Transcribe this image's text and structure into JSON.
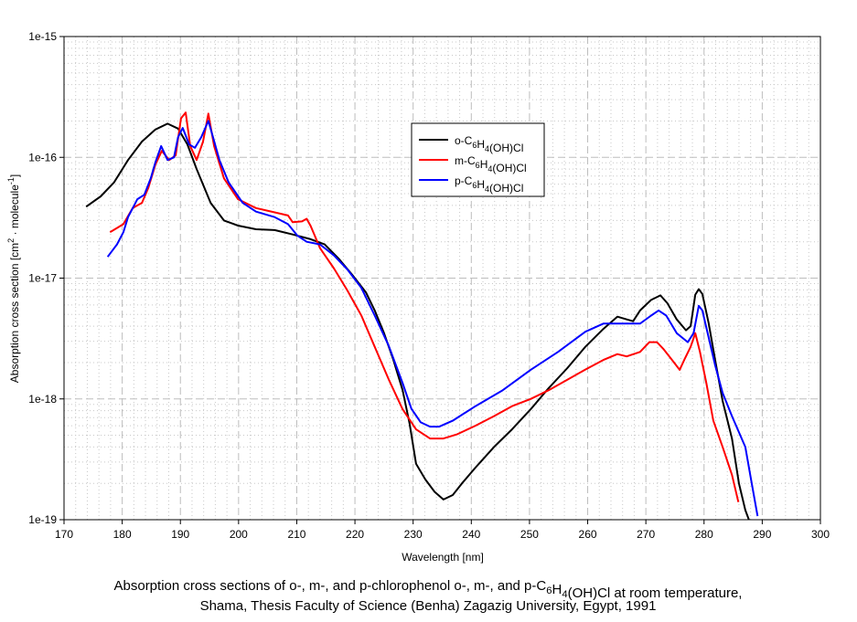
{
  "chart_data": {
    "type": "line",
    "title": "",
    "xlabel": "Wavelength [nm]",
    "ylabel": {
      "prefix": "Absorption cross section [cm",
      "sup1": "2",
      "middle": " · molecule",
      "sup2": "-1",
      "suffix": "]"
    },
    "xlim": [
      170,
      300
    ],
    "ylim": [
      1e-19,
      1e-15
    ],
    "yscale": "log",
    "xticks": [
      "170",
      "180",
      "190",
      "200",
      "210",
      "220",
      "230",
      "240",
      "250",
      "260",
      "270",
      "280",
      "290",
      "300"
    ],
    "yticks": [
      "1e-15",
      "1e-16",
      "1e-17",
      "1e-18",
      "1e-19"
    ],
    "grid": true,
    "legend_placement": "top-center",
    "caption": [
      "Absorption cross sections of o-, m-, and p-chlorophenol o-, m-, and p-C6H4(OH)Cl at room temperature,",
      "Shama, Thesis Faculty of Science (Benha) Zagazig University, Egypt, 1991"
    ],
    "series": [
      {
        "name": "o-C6H4(OH)Cl",
        "color": "#000000",
        "x": [
          173.8,
          176.3,
          178.6,
          181.0,
          183.4,
          185.7,
          187.8,
          189.6,
          191.2,
          192.8,
          195.2,
          197.5,
          199.9,
          203.0,
          206.2,
          209.3,
          212.4,
          214.8,
          217.2,
          219.5,
          221.9,
          223.4,
          225.0,
          226.6,
          228.2,
          229.4,
          230.5,
          232.1,
          233.7,
          235.2,
          236.8,
          238.4,
          240.7,
          243.9,
          247.0,
          250.2,
          253.3,
          256.5,
          259.6,
          262.7,
          265.1,
          266.7,
          267.8,
          269.0,
          270.9,
          272.5,
          273.7,
          275.3,
          276.9,
          277.7,
          278.5,
          279.1,
          279.7,
          280.8,
          281.9,
          283.2,
          284.8,
          286.0,
          287.1,
          287.7
        ],
        "y": [
          3.9e-17,
          4.75e-17,
          6.2e-17,
          9.5e-17,
          1.35e-16,
          1.7e-16,
          1.9e-16,
          1.73e-16,
          1.28e-16,
          8e-17,
          4.2e-17,
          3e-17,
          2.72e-17,
          2.54e-17,
          2.5e-17,
          2.3e-17,
          2.1e-17,
          1.9e-17,
          1.45e-17,
          1.07e-17,
          7.6e-18,
          5.4e-18,
          3.5e-18,
          2.1e-18,
          1.18e-18,
          6.2e-19,
          2.9e-19,
          2.15e-19,
          1.7e-19,
          1.47e-19,
          1.6e-19,
          2e-19,
          2.7e-19,
          4e-19,
          5.6e-19,
          8.2e-19,
          1.23e-18,
          1.8e-18,
          2.7e-18,
          3.8e-18,
          4.8e-18,
          4.55e-18,
          4.4e-18,
          5.4e-18,
          6.6e-18,
          7.2e-18,
          6.2e-18,
          4.55e-18,
          3.7e-18,
          4e-18,
          7.3e-18,
          8.1e-18,
          7.4e-18,
          4.2e-18,
          2.1e-18,
          9.6e-19,
          4.7e-19,
          2e-19,
          1.2e-19,
          1e-19
        ]
      },
      {
        "name": "m-C6H4(OH)Cl",
        "color": "#ff0000",
        "x": [
          177.9,
          180.2,
          181.8,
          183.4,
          184.5,
          185.7,
          186.8,
          188.1,
          189.2,
          190.1,
          190.9,
          191.7,
          192.8,
          193.9,
          194.8,
          195.8,
          197.5,
          199.9,
          203.0,
          206.2,
          208.5,
          209.3,
          210.9,
          211.7,
          212.4,
          214.0,
          216.4,
          218.7,
          221.1,
          223.4,
          225.8,
          228.2,
          230.5,
          232.9,
          235.2,
          237.6,
          240.7,
          243.9,
          247.0,
          250.2,
          253.3,
          256.5,
          259.6,
          262.7,
          265.1,
          266.7,
          269.0,
          270.6,
          271.9,
          273.0,
          274.5,
          275.8,
          276.6,
          277.7,
          278.5,
          279.3,
          280.4,
          281.6,
          283.2,
          284.8,
          285.9
        ],
        "y": [
          2.4e-17,
          2.8e-17,
          3.8e-17,
          4.2e-17,
          5.6e-17,
          8.7e-17,
          1.13e-16,
          9.5e-17,
          1.04e-16,
          2.1e-16,
          2.35e-16,
          1.24e-16,
          9.5e-17,
          1.35e-16,
          2.3e-16,
          1.24e-16,
          6.7e-17,
          4.5e-17,
          3.8e-17,
          3.5e-17,
          3.3e-17,
          2.9e-17,
          2.95e-17,
          3.1e-17,
          2.7e-17,
          1.77e-17,
          1.2e-17,
          7.9e-18,
          4.9e-18,
          2.7e-18,
          1.45e-18,
          8.2e-19,
          5.6e-19,
          4.7e-19,
          4.7e-19,
          5.1e-19,
          6e-19,
          7.2e-19,
          8.7e-19,
          1e-18,
          1.18e-18,
          1.44e-18,
          1.75e-18,
          2.1e-18,
          2.35e-18,
          2.25e-18,
          2.45e-18,
          2.95e-18,
          2.95e-18,
          2.6e-18,
          2.1e-18,
          1.74e-18,
          2.1e-18,
          2.7e-18,
          3.5e-18,
          2.45e-18,
          1.35e-18,
          6.6e-19,
          4e-19,
          2.35e-19,
          1.4e-19
        ]
      },
      {
        "name": "p-C6H4(OH)Cl",
        "color": "#0000ff",
        "x": [
          177.5,
          179.1,
          180.2,
          181.0,
          182.6,
          183.8,
          184.9,
          185.7,
          186.7,
          187.8,
          188.9,
          189.6,
          190.4,
          191.5,
          192.5,
          193.6,
          194.8,
          195.6,
          196.7,
          198.3,
          200.7,
          203.0,
          206.2,
          208.5,
          210.1,
          211.7,
          214.0,
          216.4,
          218.7,
          221.1,
          223.4,
          225.8,
          228.2,
          229.7,
          231.3,
          232.9,
          234.5,
          236.8,
          240.7,
          245.4,
          250.2,
          254.9,
          259.6,
          262.7,
          265.9,
          269.0,
          270.9,
          272.2,
          273.5,
          275.3,
          277.2,
          278.2,
          279.1,
          279.7,
          280.8,
          281.9,
          283.2,
          284.8,
          287.1,
          288.2,
          289.2
        ],
        "y": [
          1.5e-17,
          1.9e-17,
          2.4e-17,
          3.2e-17,
          4.5e-17,
          4.9e-17,
          6.7e-17,
          9.1e-17,
          1.24e-16,
          9.5e-17,
          1e-16,
          1.47e-16,
          1.75e-16,
          1.28e-16,
          1.2e-16,
          1.47e-16,
          2e-16,
          1.47e-16,
          9.5e-17,
          6.2e-17,
          4.2e-17,
          3.55e-17,
          3.2e-17,
          2.8e-17,
          2.25e-17,
          2e-17,
          1.9e-17,
          1.54e-17,
          1.18e-17,
          8.3e-18,
          4.9e-18,
          2.75e-18,
          1.35e-18,
          8.3e-19,
          6.4e-19,
          5.9e-19,
          5.9e-19,
          6.6e-19,
          8.7e-19,
          1.18e-18,
          1.74e-18,
          2.45e-18,
          3.6e-18,
          4.2e-18,
          4.2e-18,
          4.2e-18,
          4.9e-18,
          5.4e-18,
          4.9e-18,
          3.5e-18,
          2.95e-18,
          3.5e-18,
          5.9e-18,
          5.4e-18,
          3.2e-18,
          1.9e-18,
          1.12e-18,
          7.2e-19,
          4e-19,
          2e-19,
          1.07e-19
        ]
      }
    ]
  }
}
